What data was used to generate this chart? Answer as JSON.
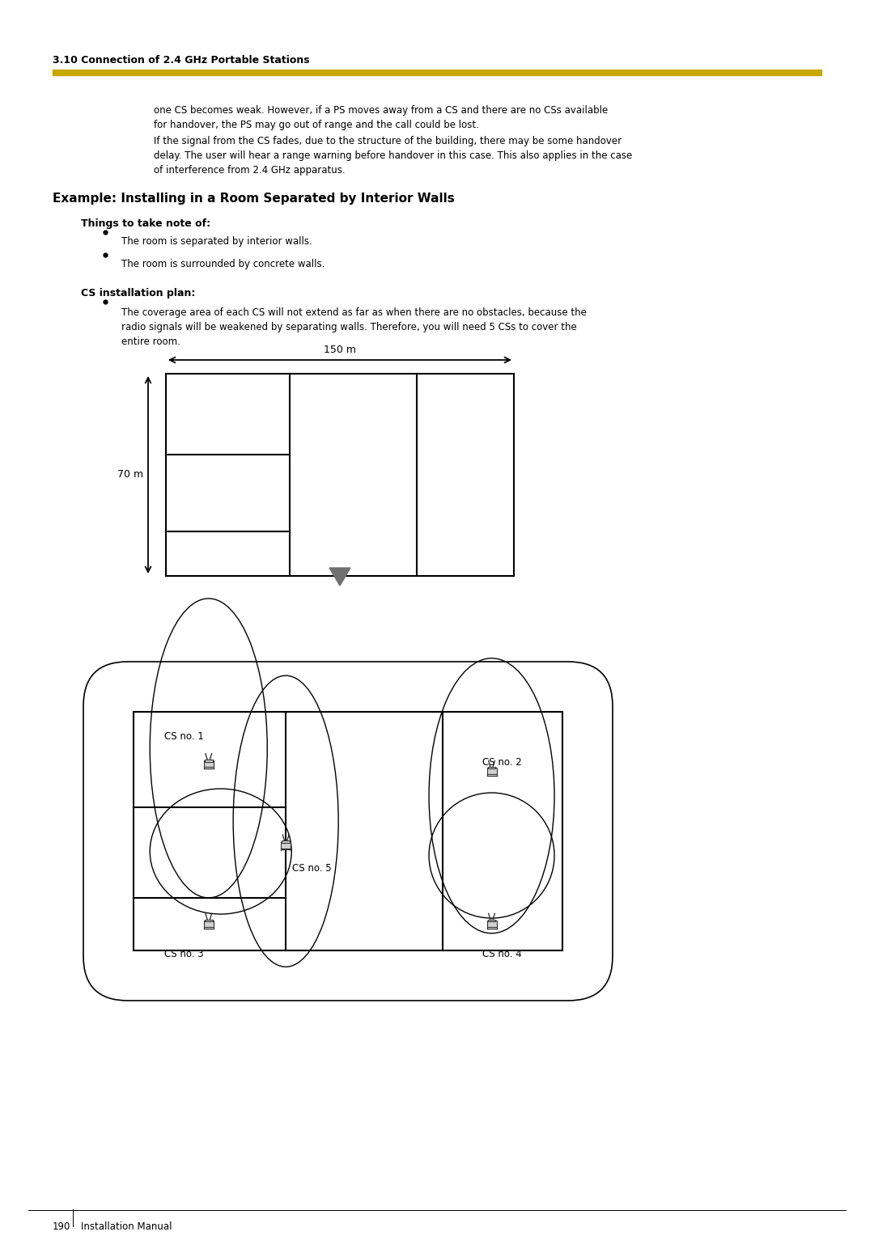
{
  "page_width": 10.8,
  "page_height": 15.28,
  "bg_color": "#ffffff",
  "section_title": "3.10 Connection of 2.4 GHz Portable Stations",
  "gold_line_color": "#C8A800",
  "body_text_lines": [
    "one CS becomes weak. However, if a PS moves away from a CS and there are no CSs available",
    "for handover, the PS may go out of range and the call could be lost.",
    "If the signal from the CS fades, due to the structure of the building, there may be some handover",
    "delay. The user will hear a range warning before handover in this case. This also applies in the case",
    "of interference from 2.4 GHz apparatus."
  ],
  "example_title": "Example: Installing in a Room Separated by Interior Walls",
  "things_title": "Things to take note of:",
  "things_bullets": [
    "The room is separated by interior walls.",
    "The room is surrounded by concrete walls."
  ],
  "cs_title": "CS installation plan:",
  "cs_bullet_lines": [
    "The coverage area of each CS will not extend as far as when there are no obstacles, because the",
    "radio signals will be weakened by separating walls. Therefore, you will need 5 CSs to cover the",
    "entire room."
  ],
  "dim_150": "150 m",
  "dim_70": "70 m",
  "footer_page": "190",
  "footer_label": "Installation Manual",
  "cs_labels": [
    "CS no. 1",
    "CS no. 2",
    "CS no. 3",
    "CS no. 4",
    "CS no. 5"
  ]
}
